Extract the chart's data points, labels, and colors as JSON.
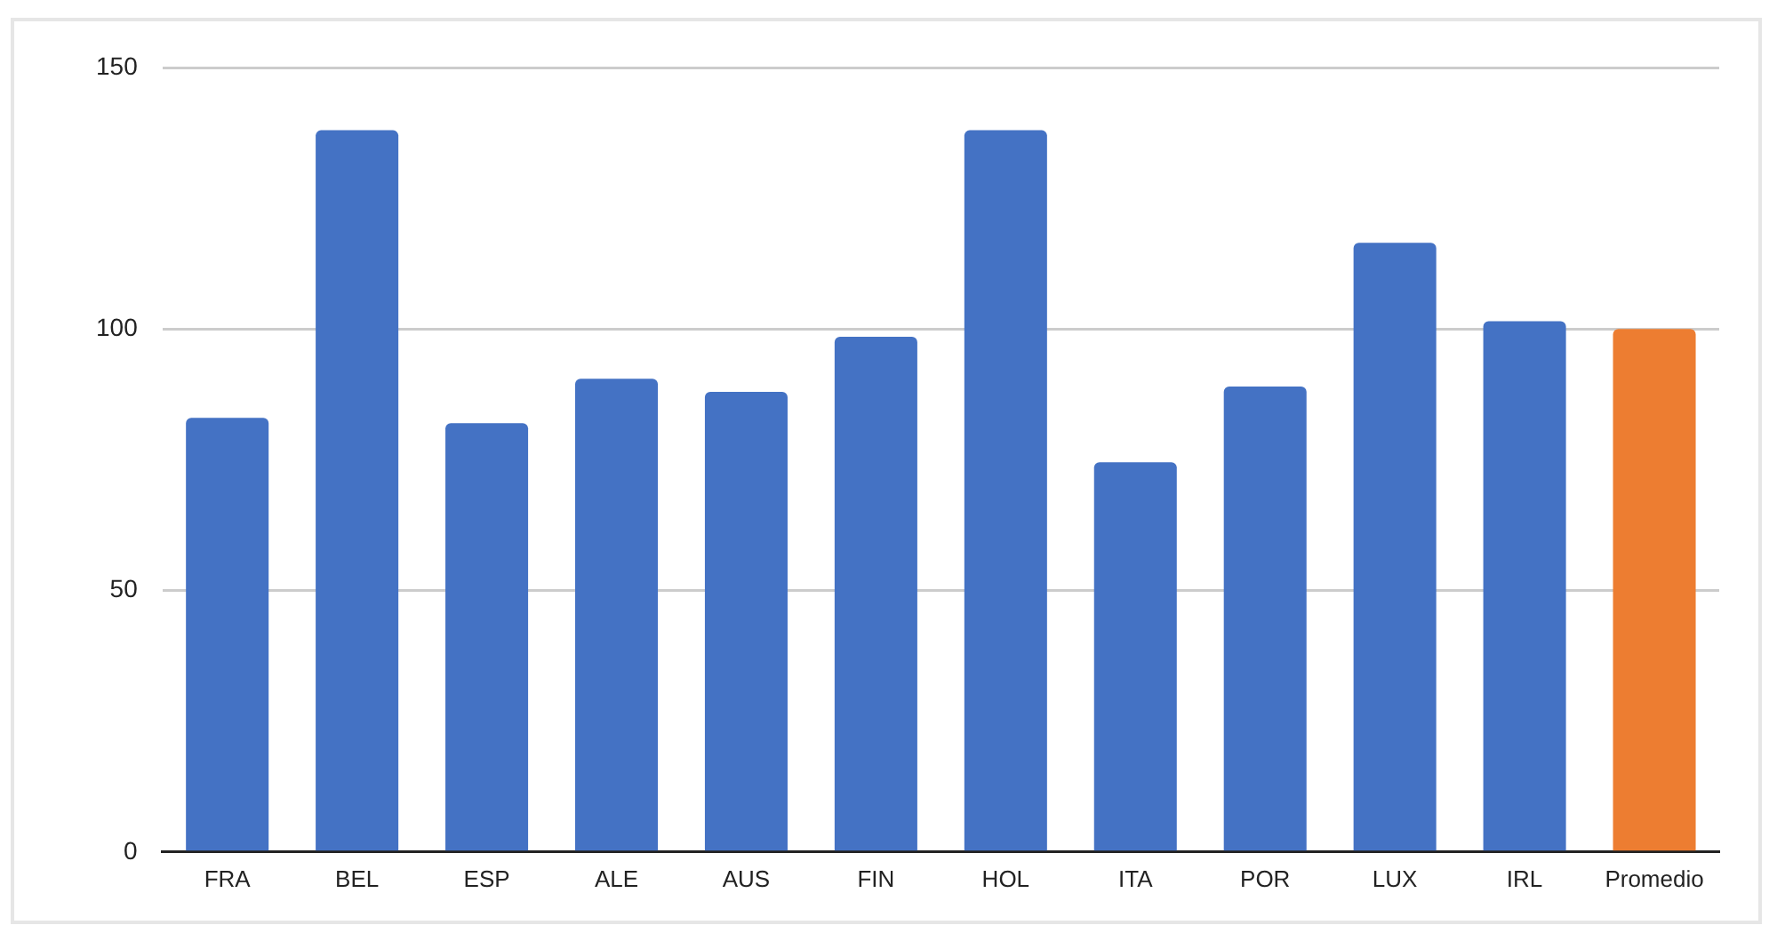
{
  "chart_data": {
    "type": "bar",
    "categories": [
      "FRA",
      "BEL",
      "ESP",
      "ALE",
      "AUS",
      "FIN",
      "HOL",
      "ITA",
      "POR",
      "LUX",
      "IRL",
      "Promedio"
    ],
    "values": [
      83,
      138,
      82,
      90.5,
      88,
      98.5,
      138,
      74.5,
      89,
      116.5,
      101.5,
      100
    ],
    "colors": [
      "#4472c4",
      "#4472c4",
      "#4472c4",
      "#4472c4",
      "#4472c4",
      "#4472c4",
      "#4472c4",
      "#4472c4",
      "#4472c4",
      "#4472c4",
      "#4472c4",
      "#ed7d31"
    ],
    "ylim": [
      0,
      150
    ],
    "yticks": [
      0,
      50,
      100,
      150
    ],
    "grid": "y",
    "legend": false
  }
}
